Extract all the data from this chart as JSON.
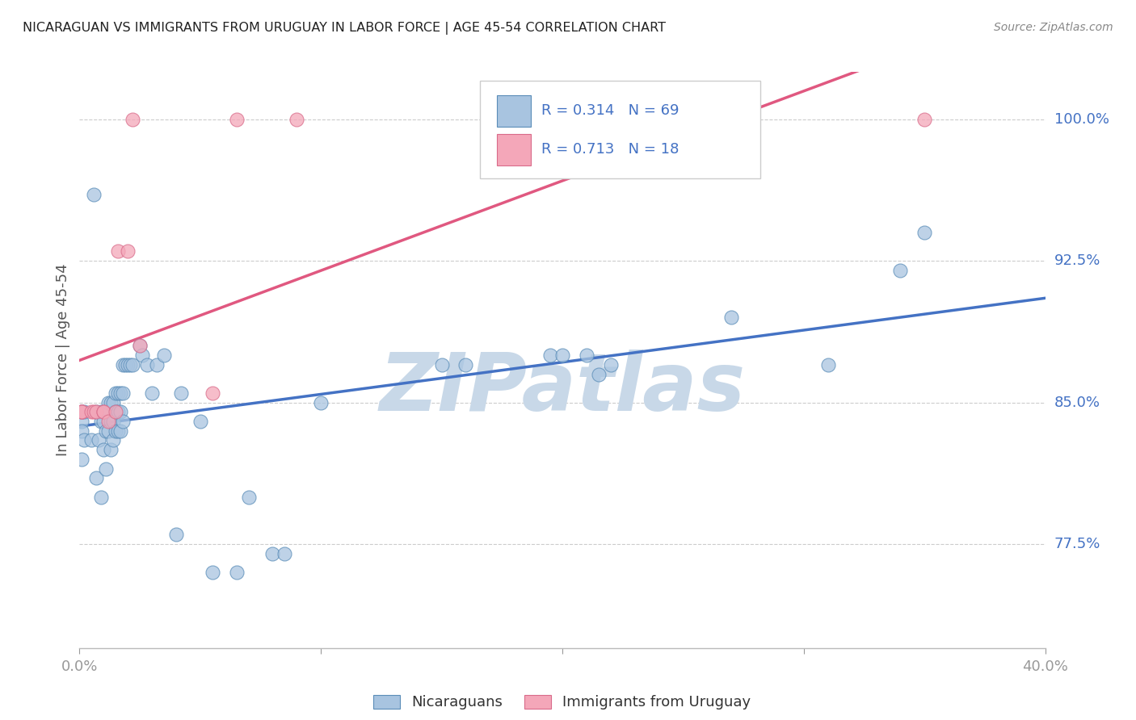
{
  "title": "NICARAGUAN VS IMMIGRANTS FROM URUGUAY IN LABOR FORCE | AGE 45-54 CORRELATION CHART",
  "source": "Source: ZipAtlas.com",
  "ylabel": "In Labor Force | Age 45-54",
  "xlim": [
    0.0,
    0.4
  ],
  "ylim": [
    0.72,
    1.025
  ],
  "yticks": [
    0.775,
    0.85,
    0.925,
    1.0
  ],
  "yticklabels": [
    "77.5%",
    "85.0%",
    "92.5%",
    "100.0%"
  ],
  "xtick_positions": [
    0.0,
    0.1,
    0.2,
    0.3,
    0.4
  ],
  "xtick_labels": [
    "0.0%",
    "",
    "",
    "",
    "40.0%"
  ],
  "blue_color": "#A8C4E0",
  "pink_color": "#F4A7B9",
  "blue_edge_color": "#5B8DB8",
  "pink_edge_color": "#D96B8A",
  "blue_line_color": "#4472C4",
  "pink_line_color": "#E05880",
  "text_color_blue": "#4472C4",
  "R_blue": 0.314,
  "N_blue": 69,
  "R_pink": 0.713,
  "N_pink": 18,
  "blue_scatter_x": [
    0.001,
    0.001,
    0.001,
    0.001,
    0.002,
    0.002,
    0.005,
    0.006,
    0.007,
    0.007,
    0.008,
    0.009,
    0.009,
    0.009,
    0.01,
    0.01,
    0.011,
    0.011,
    0.011,
    0.012,
    0.012,
    0.013,
    0.013,
    0.013,
    0.014,
    0.014,
    0.014,
    0.015,
    0.015,
    0.015,
    0.016,
    0.016,
    0.016,
    0.017,
    0.017,
    0.017,
    0.018,
    0.018,
    0.018,
    0.019,
    0.02,
    0.021,
    0.022,
    0.025,
    0.026,
    0.028,
    0.03,
    0.032,
    0.035,
    0.04,
    0.042,
    0.05,
    0.055,
    0.065,
    0.07,
    0.08,
    0.085,
    0.1,
    0.15,
    0.16,
    0.195,
    0.2,
    0.21,
    0.215,
    0.22,
    0.27,
    0.31,
    0.34,
    0.35
  ],
  "blue_scatter_y": [
    0.845,
    0.84,
    0.835,
    0.82,
    0.83,
    0.845,
    0.83,
    0.96,
    0.845,
    0.81,
    0.83,
    0.84,
    0.845,
    0.8,
    0.84,
    0.825,
    0.845,
    0.835,
    0.815,
    0.85,
    0.835,
    0.85,
    0.84,
    0.825,
    0.85,
    0.84,
    0.83,
    0.855,
    0.845,
    0.835,
    0.855,
    0.845,
    0.835,
    0.855,
    0.845,
    0.835,
    0.87,
    0.855,
    0.84,
    0.87,
    0.87,
    0.87,
    0.87,
    0.88,
    0.875,
    0.87,
    0.855,
    0.87,
    0.875,
    0.78,
    0.855,
    0.84,
    0.76,
    0.76,
    0.8,
    0.77,
    0.77,
    0.85,
    0.87,
    0.87,
    0.875,
    0.875,
    0.875,
    0.865,
    0.87,
    0.895,
    0.87,
    0.92,
    0.94
  ],
  "pink_scatter_x": [
    0.001,
    0.001,
    0.001,
    0.005,
    0.006,
    0.007,
    0.01,
    0.01,
    0.012,
    0.015,
    0.016,
    0.02,
    0.022,
    0.025,
    0.055,
    0.065,
    0.09,
    0.35
  ],
  "pink_scatter_y": [
    0.845,
    0.845,
    0.845,
    0.845,
    0.845,
    0.845,
    0.845,
    0.845,
    0.84,
    0.845,
    0.93,
    0.93,
    1.0,
    0.88,
    0.855,
    1.0,
    1.0,
    1.0
  ],
  "watermark": "ZIPatlas",
  "watermark_color": "#C8D8E8",
  "background_color": "#FFFFFF",
  "grid_color": "#CCCCCC"
}
